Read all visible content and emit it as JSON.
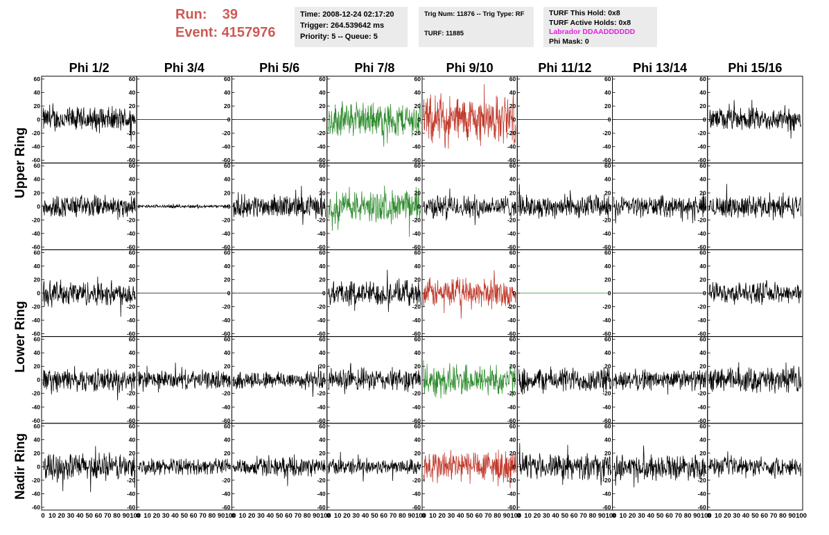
{
  "run": {
    "run_label": "Run:",
    "run_value": "39",
    "event_label": "Event:",
    "event_value": "4157976"
  },
  "info1": {
    "time": "Time: 2008-12-24 02:17:20",
    "trigger": "Trigger: 264.539642 ms",
    "priority": "Priority: 5 -- Queue: 5"
  },
  "info2": {
    "trig": "Trig Num: 11876 -- Trig Type: RF",
    "turf": "TURF: 11885"
  },
  "info3": {
    "hold": "TURF This Hold: 0x8",
    "active": "TURF Active Holds: 0x8",
    "labrador": "Labrador DDAADDDDDD",
    "phimask": "Phi Mask: 0"
  },
  "colors": {
    "black": "#000000",
    "green": "#2e8b2e",
    "red": "#c0392b",
    "labrador": "#e020e0",
    "run": "#cc5a55"
  },
  "chart_data": {
    "type": "line",
    "columns": [
      "Phi 1/2",
      "Phi 3/4",
      "Phi 5/6",
      "Phi 7/8",
      "Phi 9/10",
      "Phi 11/12",
      "Phi 13/14",
      "Phi 15/16"
    ],
    "rows": [
      "Upper Ring",
      "Upper Ring",
      "Lower Ring",
      "Lower Ring",
      "Nadir Ring"
    ],
    "row_labels": [
      "Upper Ring",
      "Lower Ring",
      "Nadir Ring"
    ],
    "ylim": [
      -60,
      60
    ],
    "xlim": [
      0,
      100
    ],
    "yticks": [
      "60",
      "40",
      "20",
      "0",
      "-20",
      "-40",
      "-60"
    ],
    "xticks": [
      "0",
      "10",
      "20",
      "30",
      "40",
      "50",
      "60",
      "70",
      "80",
      "90",
      "100"
    ],
    "panels": [
      [
        {
          "amp": 22,
          "color": "black"
        },
        {
          "amp": 0,
          "color": "black"
        },
        {
          "amp": 0,
          "color": "black"
        },
        {
          "amp": 30,
          "color": "green"
        },
        {
          "amp": 42,
          "color": "red"
        },
        {
          "amp": 0,
          "color": "black"
        },
        {
          "amp": 0,
          "color": "black"
        },
        {
          "amp": 20,
          "color": "black"
        }
      ],
      [
        {
          "amp": 20,
          "color": "black"
        },
        {
          "amp": 3,
          "color": "black"
        },
        {
          "amp": 20,
          "color": "black"
        },
        {
          "amp": 28,
          "color": "green"
        },
        {
          "amp": 20,
          "color": "black"
        },
        {
          "amp": 20,
          "color": "black"
        },
        {
          "amp": 18,
          "color": "black"
        },
        {
          "amp": 20,
          "color": "black"
        }
      ],
      [
        {
          "amp": 22,
          "color": "black"
        },
        {
          "amp": 0,
          "color": "black"
        },
        {
          "amp": 0,
          "color": "black"
        },
        {
          "amp": 22,
          "color": "black"
        },
        {
          "amp": 26,
          "color": "red"
        },
        {
          "amp": 0,
          "color": "green"
        },
        {
          "amp": 0,
          "color": "black"
        },
        {
          "amp": 18,
          "color": "black"
        }
      ],
      [
        {
          "amp": 20,
          "color": "black"
        },
        {
          "amp": 16,
          "color": "black"
        },
        {
          "amp": 16,
          "color": "black"
        },
        {
          "amp": 20,
          "color": "black"
        },
        {
          "amp": 28,
          "color": "green"
        },
        {
          "amp": 22,
          "color": "black"
        },
        {
          "amp": 18,
          "color": "black"
        },
        {
          "amp": 22,
          "color": "black"
        }
      ],
      [
        {
          "amp": 24,
          "color": "black"
        },
        {
          "amp": 14,
          "color": "black"
        },
        {
          "amp": 16,
          "color": "black"
        },
        {
          "amp": 14,
          "color": "black"
        },
        {
          "amp": 30,
          "color": "red"
        },
        {
          "amp": 22,
          "color": "black"
        },
        {
          "amp": 22,
          "color": "black"
        },
        {
          "amp": 16,
          "color": "black"
        }
      ]
    ]
  }
}
